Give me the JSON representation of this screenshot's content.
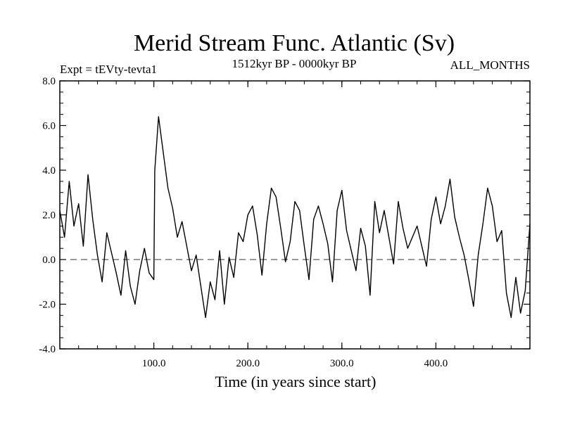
{
  "chart_data": {
    "type": "line",
    "title": "Merid Stream Func. Atlantic (Sv)",
    "subtitle_left": "Expt = tEVty-tevta1",
    "subtitle_center": "1512kyr BP - 0000kyr BP",
    "subtitle_right": "ALL_MONTHS",
    "xlabel": "Time (in years since start)",
    "ylabel": "",
    "xlim": [
      0,
      500
    ],
    "ylim": [
      -4.0,
      8.0
    ],
    "x_ticks": [
      100,
      200,
      300,
      400
    ],
    "x_tick_labels": [
      "100.0",
      "200.0",
      "300.0",
      "400.0"
    ],
    "y_ticks": [
      -4,
      -2,
      0,
      2,
      4,
      6,
      8
    ],
    "y_tick_labels": [
      "-4.0",
      "-2.0",
      "0.0",
      "2.0",
      "4.0",
      "6.0",
      "8.0"
    ],
    "zero_line": "dashed",
    "grid": false,
    "legend": "none",
    "series": [
      {
        "name": "Merid Stream Func. Atlantic",
        "x": [
          0,
          5,
          10,
          15,
          20,
          25,
          30,
          35,
          40,
          45,
          50,
          55,
          60,
          65,
          70,
          75,
          80,
          85,
          90,
          95,
          100,
          101,
          105,
          110,
          115,
          120,
          125,
          130,
          135,
          140,
          145,
          150,
          155,
          160,
          165,
          170,
          175,
          180,
          185,
          190,
          195,
          200,
          205,
          210,
          215,
          220,
          225,
          230,
          235,
          240,
          245,
          250,
          255,
          260,
          265,
          270,
          275,
          280,
          285,
          290,
          295,
          300,
          305,
          310,
          315,
          320,
          325,
          330,
          335,
          340,
          345,
          350,
          355,
          360,
          365,
          370,
          375,
          380,
          385,
          390,
          395,
          400,
          405,
          410,
          415,
          420,
          425,
          430,
          435,
          440,
          445,
          450,
          455,
          460,
          465,
          470,
          475,
          480,
          485,
          490,
          495,
          500
        ],
        "values": [
          2.2,
          1.0,
          3.5,
          1.5,
          2.5,
          0.6,
          3.8,
          1.8,
          0.2,
          -1.0,
          1.2,
          0.3,
          -0.6,
          -1.6,
          0.4,
          -1.2,
          -2.0,
          -0.5,
          0.5,
          -0.6,
          -0.9,
          4.0,
          6.4,
          4.8,
          3.2,
          2.3,
          1.0,
          1.7,
          0.6,
          -0.5,
          0.2,
          -1.2,
          -2.6,
          -1.0,
          -1.8,
          0.4,
          -2.0,
          0.1,
          -0.8,
          1.2,
          0.8,
          2.0,
          2.4,
          1.1,
          -0.7,
          1.6,
          3.2,
          2.8,
          1.4,
          -0.1,
          0.8,
          2.6,
          2.2,
          0.6,
          -0.9,
          1.8,
          2.4,
          1.6,
          0.7,
          -1.0,
          2.2,
          3.1,
          1.3,
          0.4,
          -0.5,
          1.4,
          0.6,
          -1.6,
          2.6,
          1.2,
          2.2,
          1.0,
          -0.2,
          2.6,
          1.4,
          0.5,
          1.0,
          1.5,
          0.6,
          -0.3,
          1.8,
          2.8,
          1.6,
          2.4,
          3.6,
          1.9,
          1.0,
          0.2,
          -0.9,
          -2.1,
          0.2,
          1.6,
          3.2,
          2.4,
          0.8,
          1.3,
          -1.5,
          -2.6,
          -0.8,
          -2.4,
          -1.4,
          1.6
        ]
      }
    ]
  }
}
